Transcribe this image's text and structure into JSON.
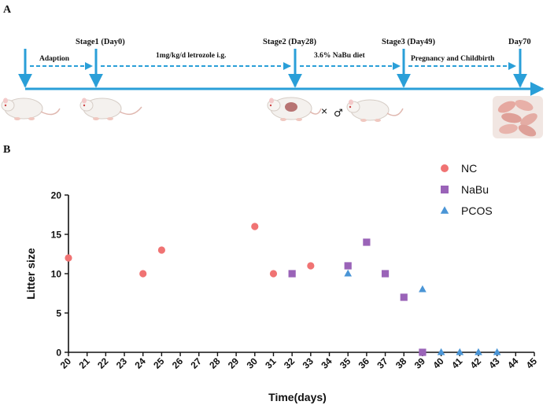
{
  "panel_a": {
    "letter": "A",
    "stages": [
      {
        "label": "Stage1 (Day0)"
      },
      {
        "label": "Stage2 (Day28)"
      },
      {
        "label": "Stage3 (Day49)"
      },
      {
        "label": "Day70"
      }
    ],
    "phases": [
      {
        "label": "Adaption"
      },
      {
        "label": "1mg/kg/d letrozole i.g."
      },
      {
        "label": "3.6% NaBu diet"
      },
      {
        "label": "Pregnancy and Childbirth"
      }
    ],
    "mating_symbol": "×",
    "male_symbol": "♂",
    "colors": {
      "timeline": "#2a9fd8",
      "dashed": "#2a9fd8"
    }
  },
  "chart_data": {
    "panel_letter": "B",
    "type": "scatter",
    "title": "",
    "xlabel": "Time(days)",
    "ylabel": "Litter size",
    "xlim": [
      20,
      45
    ],
    "ylim": [
      0,
      20
    ],
    "x_ticks": [
      20,
      21,
      22,
      23,
      24,
      25,
      26,
      27,
      28,
      29,
      30,
      31,
      32,
      33,
      34,
      35,
      36,
      37,
      38,
      39,
      40,
      41,
      42,
      43,
      44,
      45
    ],
    "y_ticks": [
      0,
      5,
      10,
      15,
      20
    ],
    "legend_position": "top-right",
    "series": [
      {
        "name": "NC",
        "marker": "circle",
        "color": "#f07373",
        "points": [
          [
            20,
            12
          ],
          [
            24,
            10
          ],
          [
            25,
            13
          ],
          [
            30,
            16
          ],
          [
            31,
            10
          ],
          [
            33,
            11
          ]
        ]
      },
      {
        "name": "NaBu",
        "marker": "square",
        "color": "#9a63b8",
        "points": [
          [
            32,
            10
          ],
          [
            35,
            11
          ],
          [
            36,
            14
          ],
          [
            37,
            10
          ],
          [
            38,
            7
          ],
          [
            39,
            0
          ]
        ]
      },
      {
        "name": "PCOS",
        "marker": "triangle",
        "color": "#4a95d6",
        "points": [
          [
            35,
            10
          ],
          [
            39,
            8
          ],
          [
            40,
            0
          ],
          [
            41,
            0
          ],
          [
            42,
            0
          ],
          [
            43,
            0
          ]
        ]
      }
    ]
  }
}
